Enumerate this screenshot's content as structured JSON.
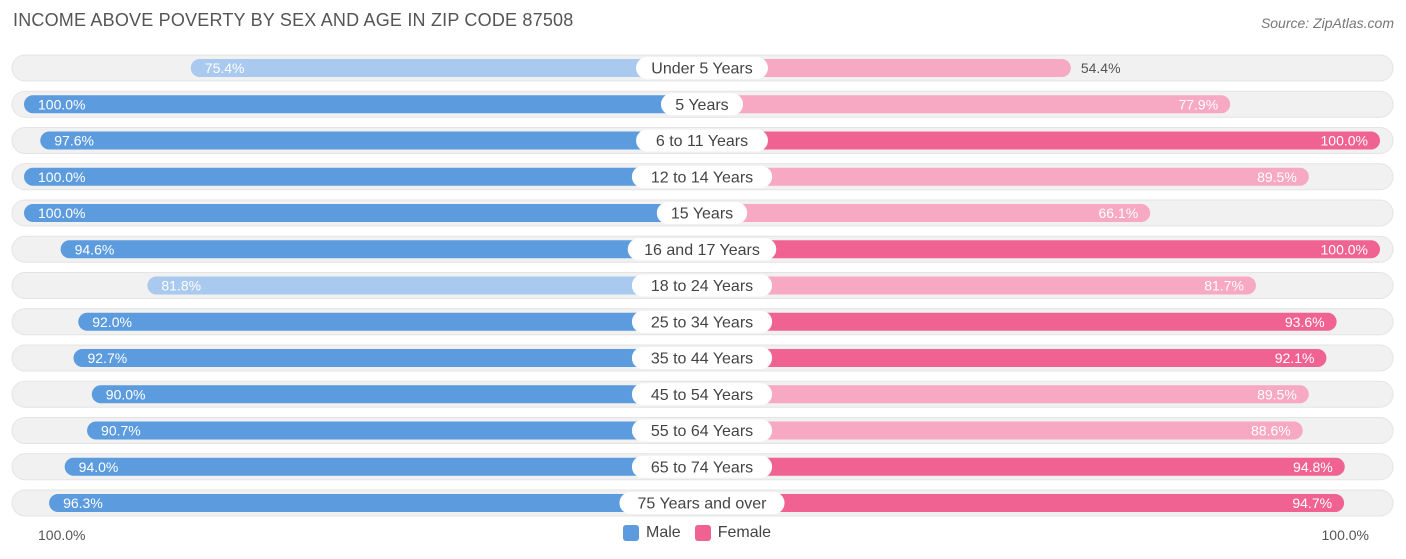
{
  "title": "INCOME ABOVE POVERTY BY SEX AND AGE IN ZIP CODE 87508",
  "source": "Source: ZipAtlas.com",
  "colors": {
    "male_dark": "#5b9bde",
    "male_light": "#a9c9ef",
    "female_dark": "#f06292",
    "female_light": "#f7a8c2",
    "track": "#f1f1f1"
  },
  "axis": {
    "left_label": "100.0%",
    "right_label": "100.0%"
  },
  "legend": {
    "male": "Male",
    "female": "Female"
  },
  "chart_data": {
    "type": "bar",
    "orientation": "horizontal-diverging",
    "title": "INCOME ABOVE POVERTY BY SEX AND AGE IN ZIP CODE 87508",
    "xlim": [
      0,
      100
    ],
    "categories": [
      "Under 5 Years",
      "5 Years",
      "6 to 11 Years",
      "12 to 14 Years",
      "15 Years",
      "16 and 17 Years",
      "18 to 24 Years",
      "25 to 34 Years",
      "35 to 44 Years",
      "45 to 54 Years",
      "55 to 64 Years",
      "65 to 74 Years",
      "75 Years and over"
    ],
    "series": [
      {
        "name": "Male",
        "values": [
          75.4,
          100.0,
          97.6,
          100.0,
          100.0,
          94.6,
          81.8,
          92.0,
          92.7,
          90.0,
          90.7,
          94.0,
          96.3
        ],
        "labels": [
          "75.4%",
          "100.0%",
          "97.6%",
          "100.0%",
          "100.0%",
          "94.6%",
          "81.8%",
          "92.0%",
          "92.7%",
          "90.0%",
          "90.7%",
          "94.0%",
          "96.3%"
        ]
      },
      {
        "name": "Female",
        "values": [
          54.4,
          77.9,
          100.0,
          89.5,
          66.1,
          100.0,
          81.7,
          93.6,
          92.1,
          89.5,
          88.6,
          94.8,
          94.7
        ],
        "labels": [
          "54.4%",
          "77.9%",
          "100.0%",
          "89.5%",
          "66.1%",
          "100.0%",
          "81.7%",
          "93.6%",
          "92.1%",
          "89.5%",
          "88.6%",
          "94.8%",
          "94.7%"
        ]
      }
    ]
  }
}
